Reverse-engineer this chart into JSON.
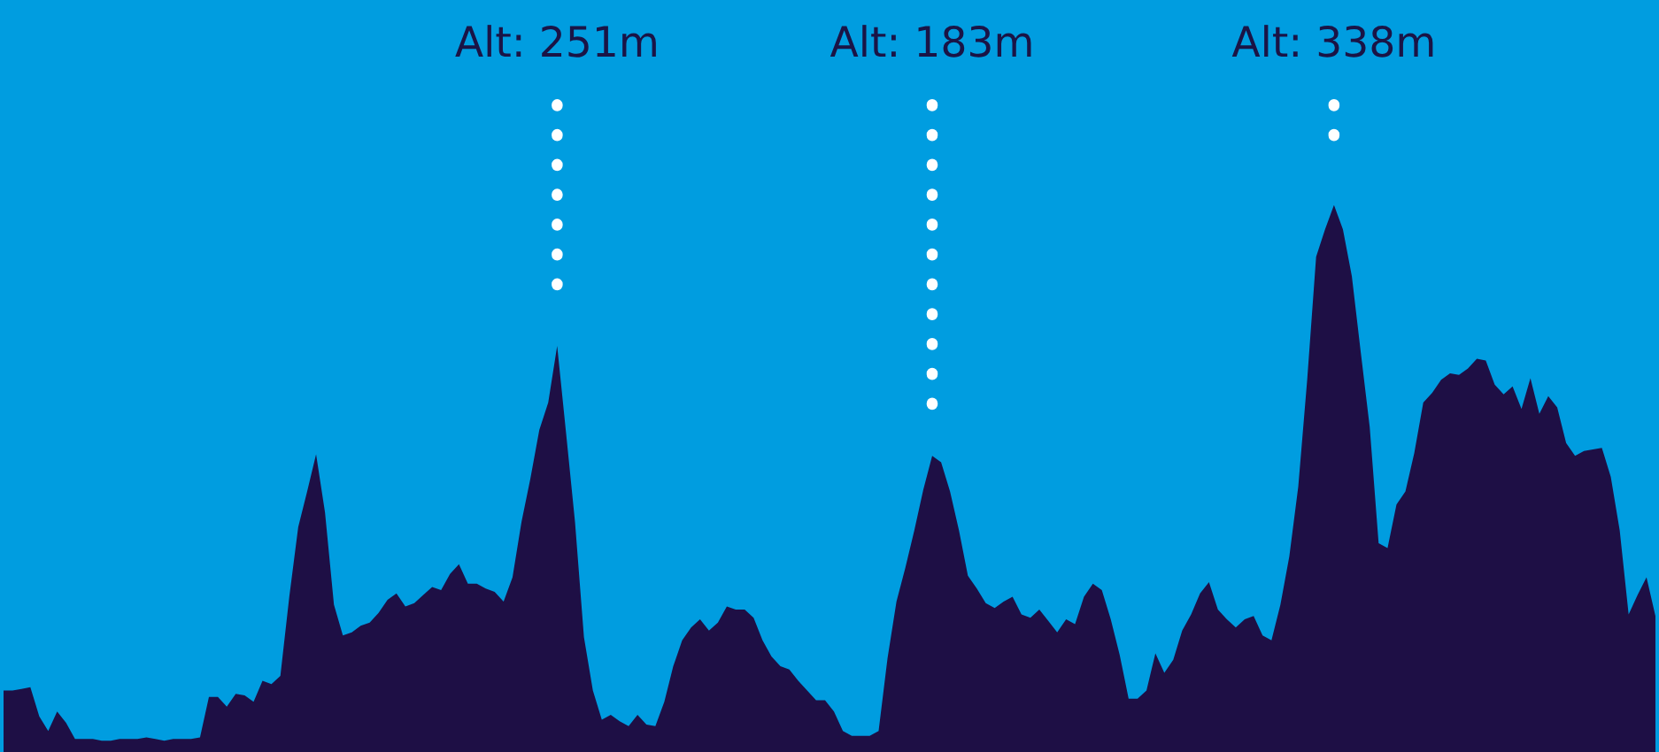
{
  "chart_data": {
    "type": "area",
    "categories": [
      null,
      null,
      null,
      null,
      null,
      null,
      null,
      null,
      null,
      null,
      null,
      null,
      null,
      null,
      null,
      null,
      null,
      null,
      null,
      null,
      null,
      null,
      null,
      null,
      null,
      null,
      null,
      null,
      null,
      null,
      null,
      null,
      null,
      null,
      null,
      null,
      null,
      null,
      null,
      null,
      null,
      null,
      null,
      null,
      null,
      null,
      null,
      null,
      null,
      null,
      null,
      null,
      null,
      null,
      null,
      null,
      null,
      null,
      null,
      null,
      null,
      null,
      null,
      null,
      null,
      null,
      null,
      null,
      null,
      null,
      null,
      null,
      null,
      null,
      null,
      null,
      null,
      null,
      null,
      null,
      null,
      null,
      null,
      null,
      null,
      null,
      null,
      null,
      null,
      null,
      null,
      null,
      null,
      null,
      null,
      null,
      null,
      null,
      null,
      null,
      null,
      null,
      null,
      null,
      null,
      null,
      null,
      null,
      null,
      null,
      null,
      null,
      null,
      null,
      null,
      null,
      null,
      null,
      null,
      null,
      null,
      null,
      null,
      null,
      null,
      null,
      null,
      null,
      null,
      null,
      null,
      null,
      null,
      null,
      null,
      null,
      null,
      null,
      null,
      null,
      null,
      null,
      null,
      null,
      null,
      null,
      null,
      null,
      null,
      null,
      null,
      null,
      null,
      null,
      null,
      null,
      null,
      null,
      null,
      null,
      null,
      null,
      null,
      null,
      null,
      null,
      null,
      null,
      null,
      null,
      null,
      null,
      null,
      null,
      null,
      null,
      null,
      null,
      null,
      null,
      null,
      null,
      null,
      null,
      null,
      null
    ],
    "series": [
      {
        "color": "#1e0f45",
        "values": [
          38,
          38,
          39,
          40,
          22,
          13,
          25,
          18,
          8,
          8,
          8,
          7,
          7,
          8,
          8,
          8,
          9,
          8,
          7,
          8,
          8,
          8,
          9,
          34,
          34,
          28,
          36,
          35,
          31,
          44,
          42,
          47,
          96,
          139,
          161,
          184,
          148,
          91,
          72,
          74,
          78,
          80,
          86,
          94,
          98,
          90,
          92,
          97,
          102,
          100,
          110,
          116,
          104,
          104,
          101,
          99,
          93,
          108,
          142,
          169,
          199,
          216,
          251,
          197,
          142,
          71,
          38,
          20,
          23,
          19,
          16,
          23,
          17,
          16,
          31,
          53,
          69,
          77,
          82,
          75,
          80,
          90,
          88,
          88,
          83,
          69,
          59,
          53,
          51,
          44,
          38,
          32,
          32,
          25,
          13,
          10,
          10,
          10,
          13,
          58,
          93,
          114,
          137,
          162,
          183,
          179,
          161,
          137,
          109,
          101,
          92,
          89,
          93,
          96,
          85,
          83,
          88,
          81,
          74,
          82,
          79,
          96,
          104,
          100,
          82,
          60,
          33,
          33,
          38,
          61,
          49,
          57,
          75,
          85,
          98,
          105,
          88,
          82,
          77,
          82,
          84,
          72,
          69,
          91,
          121,
          164,
          230,
          306,
          323,
          338,
          323,
          294,
          247,
          201,
          129,
          126,
          153,
          161,
          185,
          216,
          222,
          230,
          234,
          233,
          237,
          243,
          242,
          227,
          221,
          226,
          212,
          231,
          209,
          220,
          213,
          191,
          183,
          186,
          187,
          188,
          170,
          137,
          85,
          97,
          108,
          84
        ],
        "value_labels": [
          null,
          null,
          null,
          null,
          null,
          null,
          null,
          null,
          null,
          null,
          null,
          null,
          null,
          null,
          null,
          null,
          null,
          null,
          null,
          null,
          null,
          null,
          null,
          null,
          null,
          null,
          null,
          null,
          null,
          null,
          null,
          null,
          null,
          null,
          null,
          null,
          null,
          null,
          null,
          null,
          null,
          null,
          null,
          null,
          null,
          null,
          null,
          null,
          null,
          null,
          null,
          null,
          null,
          null,
          null,
          null,
          null,
          null,
          null,
          null,
          null,
          null,
          "Alt: 251m",
          null,
          null,
          null,
          null,
          null,
          null,
          null,
          null,
          null,
          null,
          null,
          null,
          null,
          null,
          null,
          null,
          null,
          null,
          null,
          null,
          null,
          null,
          null,
          null,
          null,
          null,
          null,
          null,
          null,
          null,
          null,
          null,
          null,
          null,
          null,
          null,
          null,
          null,
          null,
          null,
          null,
          "Alt: 183m",
          null,
          null,
          null,
          null,
          null,
          null,
          null,
          null,
          null,
          null,
          null,
          null,
          null,
          null,
          null,
          null,
          null,
          null,
          null,
          null,
          null,
          null,
          null,
          null,
          null,
          null,
          null,
          null,
          null,
          null,
          null,
          null,
          null,
          null,
          null,
          null,
          null,
          null,
          null,
          null,
          null,
          null,
          null,
          null,
          "Alt: 338m",
          null,
          null,
          null,
          null,
          null,
          null,
          null,
          null,
          null,
          null,
          null,
          null,
          null,
          null,
          null,
          null,
          null,
          null,
          null,
          null,
          null,
          null,
          null,
          null,
          null,
          null,
          null,
          null,
          null,
          null,
          null,
          null,
          null,
          null,
          null,
          null
        ]
      }
    ]
  }
}
